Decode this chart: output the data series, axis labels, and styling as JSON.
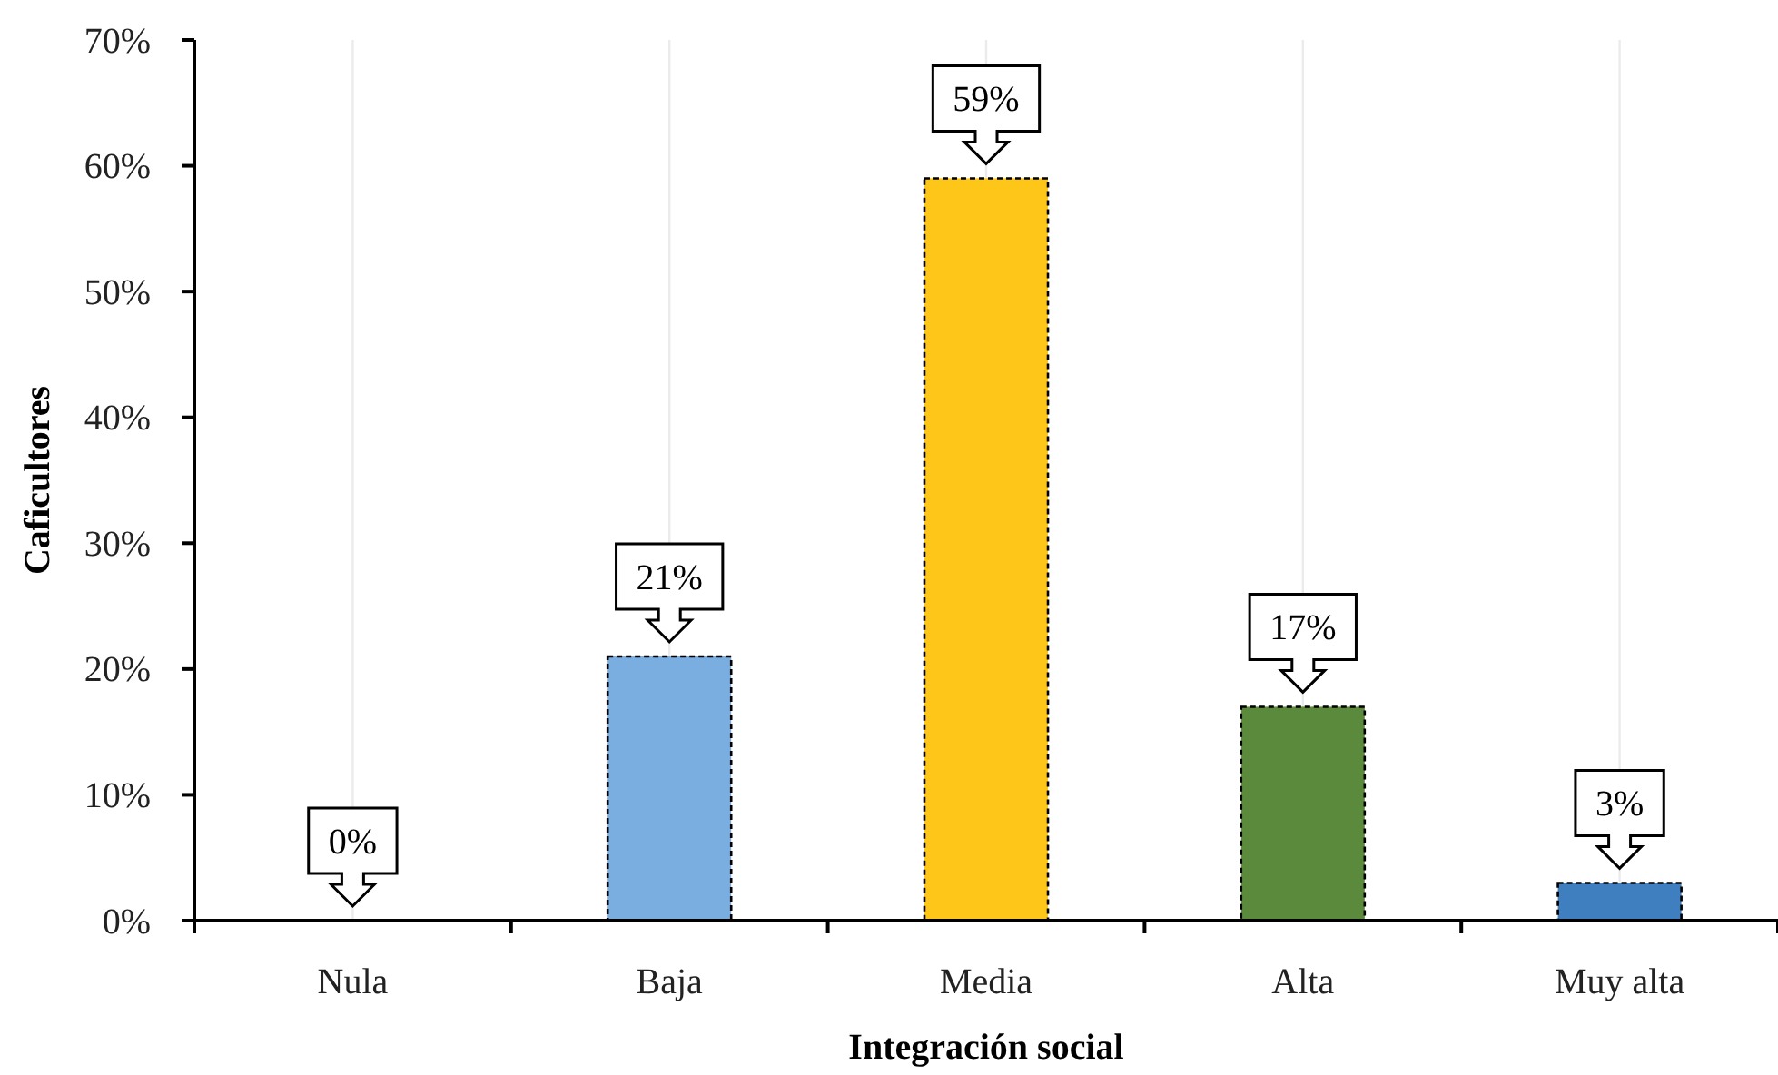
{
  "chart_data": {
    "type": "bar",
    "xlabel": "Integración social",
    "ylabel": "Caficultores",
    "categories": [
      "Nula",
      "Baja",
      "Media",
      "Alta",
      "Muy alta"
    ],
    "values": [
      0,
      21,
      59,
      17,
      3
    ],
    "colors": [
      "#7aaee0",
      "#7aaee0",
      "#ffc61a",
      "#5b8a3c",
      "#3f7fbf"
    ],
    "value_labels": [
      "0%",
      "21%",
      "59%",
      "17%",
      "3%"
    ],
    "ylim": [
      0,
      70
    ],
    "yticks": [
      {
        "value": 0,
        "label": "0%"
      },
      {
        "value": 10,
        "label": "10%"
      },
      {
        "value": 20,
        "label": "20%"
      },
      {
        "value": 30,
        "label": "30%"
      },
      {
        "value": 40,
        "label": "40%"
      },
      {
        "value": 50,
        "label": "50%"
      },
      {
        "value": 60,
        "label": "60%"
      },
      {
        "value": 70,
        "label": "70%"
      }
    ],
    "grid": "x"
  }
}
